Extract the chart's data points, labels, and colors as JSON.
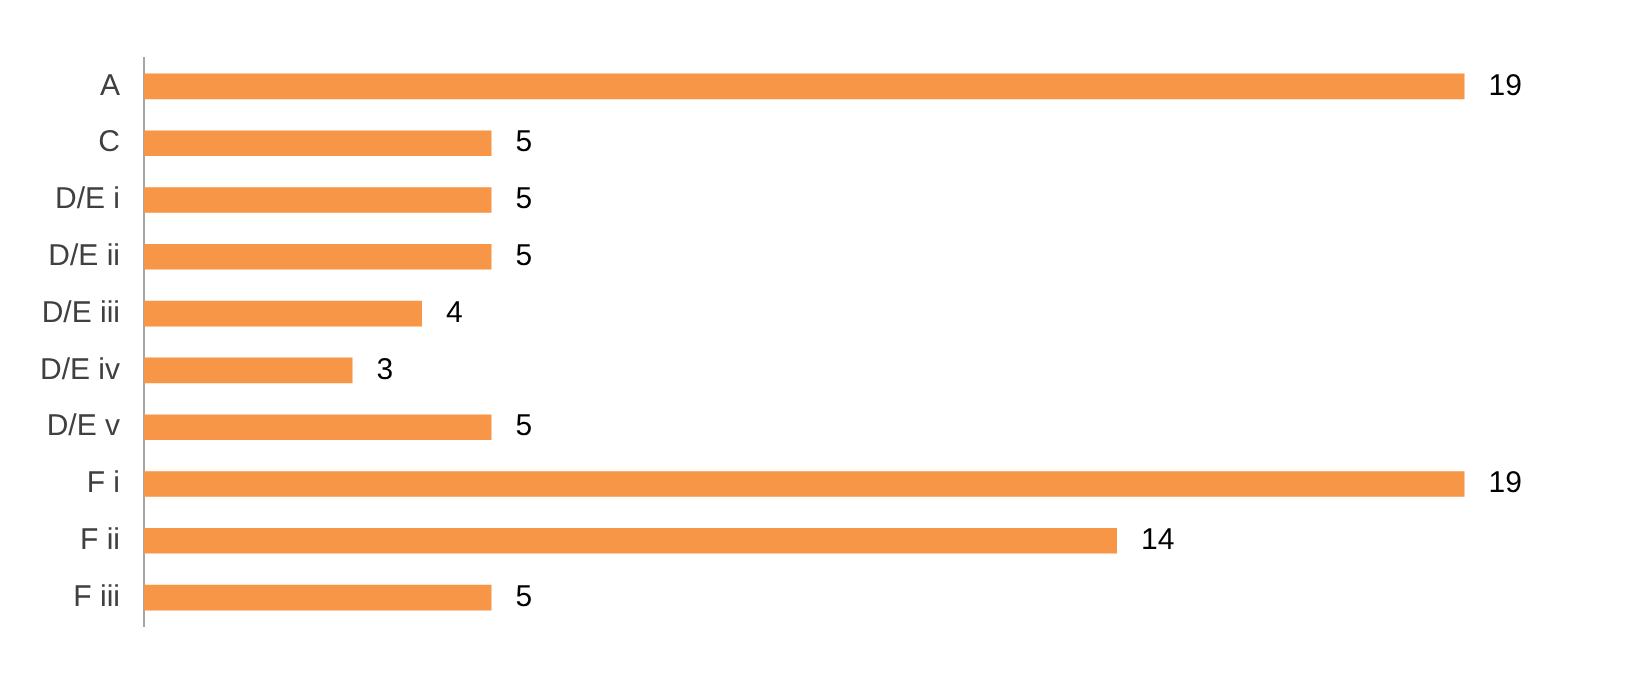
{
  "chart_data": {
    "type": "bar",
    "orientation": "horizontal",
    "categories": [
      "A",
      "C",
      "D/E i",
      "D/E ii",
      "D/E iii",
      "D/E iv",
      "D/E v",
      "F i",
      "F ii",
      "F iii"
    ],
    "values": [
      19,
      5,
      5,
      5,
      4,
      3,
      5,
      19,
      14,
      5
    ],
    "color": "#f79646",
    "data_labels": true,
    "grid": false,
    "legend": false,
    "tick_labels": "y"
  }
}
